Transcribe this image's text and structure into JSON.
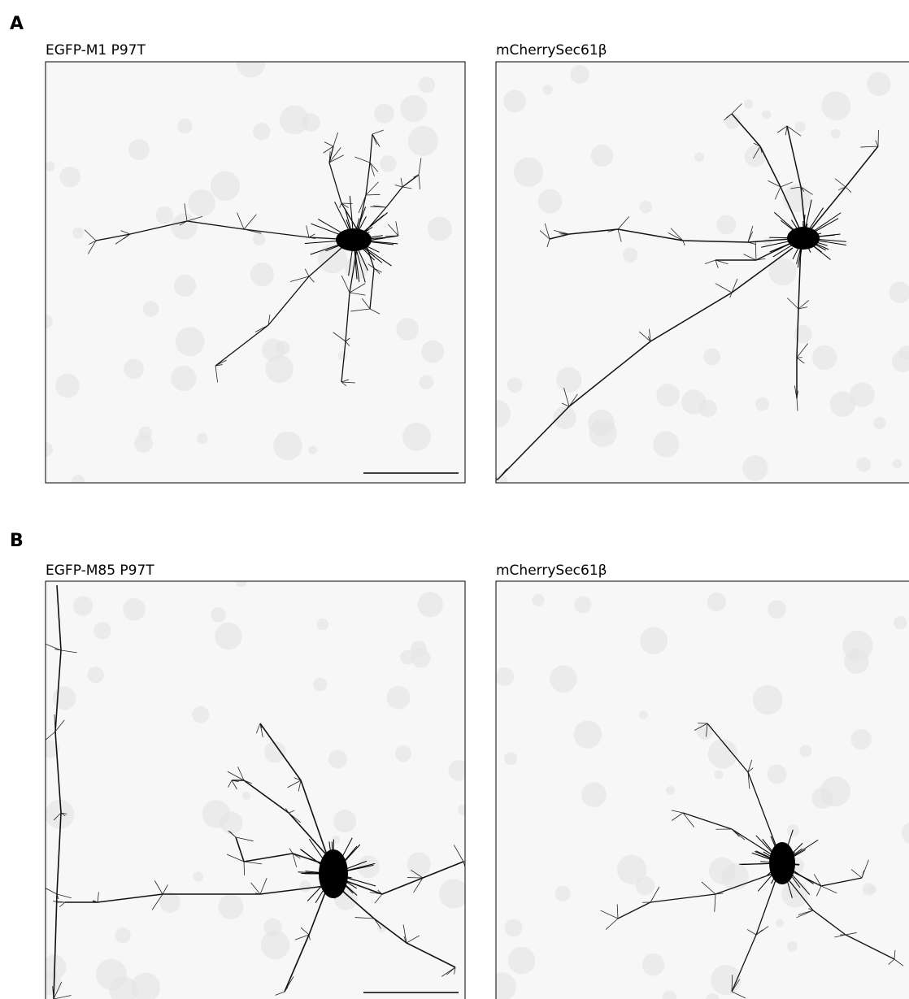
{
  "panels": [
    {
      "label": "A",
      "images": [
        {
          "title": "EGFP-M1 P97T"
        },
        {
          "title": "mCherrySec61β"
        }
      ]
    },
    {
      "label": "B",
      "images": [
        {
          "title": "EGFP-M85 P97T"
        },
        {
          "title": "mCherrySec61β"
        }
      ]
    }
  ]
}
